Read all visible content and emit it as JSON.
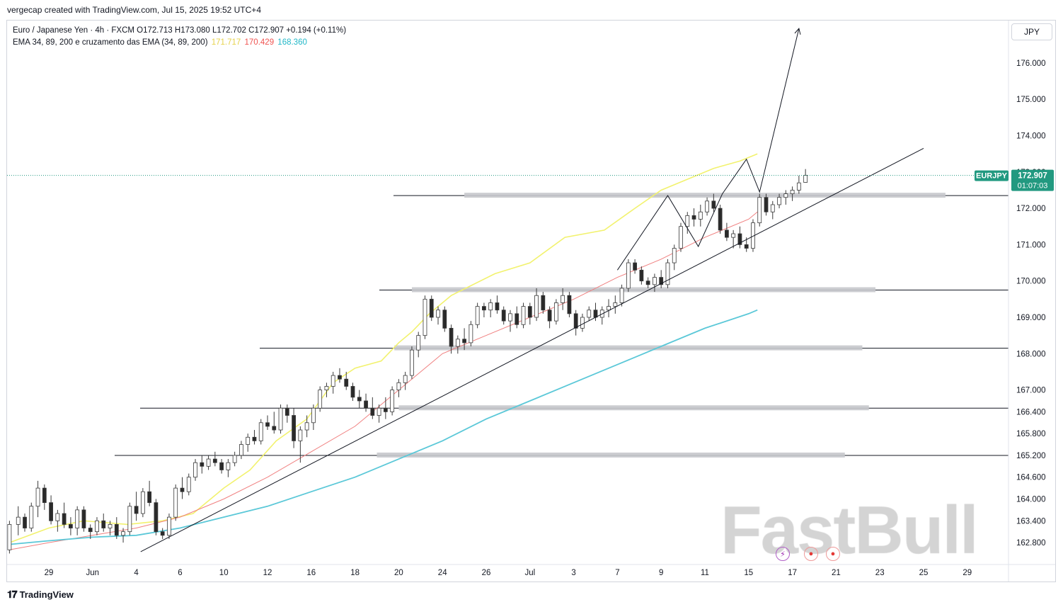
{
  "header": {
    "credit": "vergecap created with TradingView.com, Jul 15, 2025 19:52 UTC+4"
  },
  "legend": {
    "symbol_line": "Euro / Japanese Yen · 4h · FXCM",
    "open": "O172.713",
    "high": "H173.080",
    "low": "L172.702",
    "close": "C172.907",
    "change": "+0.194 (+0.11%)",
    "indicator_name": "EMA 34, 89, 200 e cruzamento das EMA (34, 89, 200)",
    "ema34_value": "171.717",
    "ema89_value": "170.429",
    "ema200_value": "168.360"
  },
  "price_axis": {
    "currency": "JPY"
  },
  "price_tag": {
    "symbol": "EURJPY",
    "price": "172.907",
    "countdown": "01:07:03"
  },
  "footer": {
    "brand": "TradingView"
  },
  "watermark": "FastBull",
  "colors": {
    "up": "#26a69a",
    "down": "#ef5350",
    "candle": "#3a3a3a",
    "ema34": "#f2f26e",
    "ema89": "#f08080",
    "ema200": "#5bc8d8",
    "tag_bg": "#229980",
    "zone": "#c7c8cc"
  },
  "events": [
    {
      "icon": "lightning-event-icon",
      "color": "#9c27b0"
    },
    {
      "icon": "economic-event-icon",
      "color": "#e53935"
    },
    {
      "icon": "economic-event-icon",
      "color": "#e53935"
    }
  ],
  "chart_data": {
    "type": "candlestick",
    "timeframe": "4h",
    "ylim": [
      162.5,
      177.0
    ],
    "y_ticks": [
      162.8,
      163.4,
      164.0,
      164.6,
      165.2,
      165.8,
      166.4,
      167.0,
      168.0,
      169.0,
      170.0,
      171.0,
      172.0,
      173.0,
      174.0,
      175.0,
      176.0
    ],
    "y_tick_labels": [
      "162.800",
      "163.400",
      "164.000",
      "164.600",
      "165.200",
      "165.800",
      "166.400",
      "167.000",
      "168.000",
      "169.000",
      "170.000",
      "171.000",
      "172.000",
      "173.000",
      "174.000",
      "175.000",
      "176.000"
    ],
    "x_tick_labels": [
      "29",
      "Jun",
      "4",
      "6",
      "10",
      "12",
      "16",
      "18",
      "20",
      "24",
      "26",
      "Jul",
      "3",
      "7",
      "9",
      "11",
      "15",
      "17",
      "21",
      "23",
      "25",
      "29"
    ],
    "x_tick_positions": [
      0,
      1,
      2,
      3,
      4,
      5,
      6,
      7,
      8,
      9,
      10,
      11,
      12,
      13,
      14,
      15,
      16,
      17,
      18,
      19,
      20,
      21
    ],
    "horizontal_levels": [
      172.35,
      169.75,
      168.15,
      166.5,
      165.2
    ],
    "support_zones": [
      {
        "level": 172.35,
        "from_tick": 9.5,
        "to_tick": 20.5
      },
      {
        "level": 169.75,
        "from_tick": 8.3,
        "to_tick": 18.9
      },
      {
        "level": 168.15,
        "from_tick": 7.9,
        "to_tick": 18.6
      },
      {
        "level": 166.5,
        "from_tick": 8.0,
        "to_tick": 18.75
      },
      {
        "level": 165.2,
        "from_tick": 7.5,
        "to_tick": 18.2
      }
    ],
    "trendline": {
      "from": {
        "x": 2.1,
        "y": 162.55
      },
      "to": {
        "x": 20.0,
        "y": 173.65
      }
    },
    "projection": [
      {
        "x": 13.0,
        "y": 170.3
      },
      {
        "x": 14.15,
        "y": 172.35
      },
      {
        "x": 14.85,
        "y": 170.95
      },
      {
        "x": 15.4,
        "y": 172.4
      },
      {
        "x": 15.95,
        "y": 173.35
      },
      {
        "x": 16.25,
        "y": 172.45
      },
      {
        "x": 17.15,
        "y": 176.95
      }
    ],
    "series": [
      {
        "name": "EMA 34",
        "x": [
          -0.9,
          0,
          0.8,
          1.8,
          2.6,
          3.3,
          4,
          4.6,
          5.2,
          5.9,
          6.5,
          7,
          7.6,
          8,
          8.3,
          8.7,
          9.2,
          10.2,
          11,
          11.8,
          12.7,
          13.4,
          14,
          14.6,
          15.2,
          15.8,
          16.2
        ],
        "y": [
          162.8,
          163.2,
          163.4,
          163.3,
          163.4,
          163.6,
          164.3,
          164.8,
          165.6,
          166.2,
          167.2,
          167.6,
          167.8,
          168.3,
          168.6,
          169.1,
          169.6,
          170.2,
          170.5,
          171.2,
          171.4,
          172.0,
          172.5,
          172.8,
          173.1,
          173.3,
          173.5
        ]
      },
      {
        "name": "EMA 89",
        "x": [
          -0.9,
          0,
          1,
          2,
          3,
          4,
          5,
          6,
          7,
          7.5,
          8,
          8.5,
          9,
          10,
          11,
          12,
          13,
          14,
          15,
          16,
          16.2
        ],
        "y": [
          162.6,
          162.8,
          163.0,
          163.2,
          163.5,
          164.0,
          164.6,
          165.3,
          166.0,
          166.5,
          167.0,
          167.5,
          168.0,
          168.5,
          169.0,
          169.5,
          170.1,
          170.6,
          171.2,
          171.7,
          171.9
        ]
      },
      {
        "name": "EMA 200",
        "x": [
          -0.9,
          0,
          1,
          2,
          3,
          4,
          5,
          6,
          7,
          8,
          9,
          10,
          11,
          12,
          13,
          14,
          15,
          16,
          16.2
        ],
        "y": [
          162.75,
          162.85,
          162.95,
          163.0,
          163.2,
          163.5,
          163.8,
          164.2,
          164.6,
          165.1,
          165.6,
          166.2,
          166.7,
          167.2,
          167.7,
          168.2,
          168.7,
          169.1,
          169.2
        ]
      }
    ],
    "candles": [
      [
        -0.9,
        162.6,
        163.4,
        162.5,
        163.3
      ],
      [
        -0.7,
        163.3,
        163.8,
        163.0,
        163.5
      ],
      [
        -0.55,
        163.5,
        163.6,
        163.1,
        163.2
      ],
      [
        -0.4,
        163.2,
        163.9,
        163.1,
        163.8
      ],
      [
        -0.25,
        163.8,
        164.5,
        163.5,
        164.3
      ],
      [
        -0.1,
        164.3,
        164.4,
        163.7,
        163.9
      ],
      [
        0.05,
        163.9,
        164.1,
        163.3,
        163.4
      ],
      [
        0.2,
        163.4,
        163.7,
        163.1,
        163.6
      ],
      [
        0.35,
        163.6,
        163.9,
        163.2,
        163.3
      ],
      [
        0.5,
        163.3,
        163.5,
        163.0,
        163.2
      ],
      [
        0.65,
        163.2,
        163.8,
        163.0,
        163.7
      ],
      [
        0.8,
        163.7,
        163.8,
        163.1,
        163.2
      ],
      [
        0.95,
        163.2,
        163.3,
        162.9,
        163.1
      ],
      [
        1.1,
        163.1,
        163.5,
        163.0,
        163.4
      ],
      [
        1.25,
        163.4,
        163.6,
        163.1,
        163.2
      ],
      [
        1.4,
        163.2,
        163.4,
        163.0,
        163.3
      ],
      [
        1.55,
        163.3,
        163.5,
        162.9,
        163.0
      ],
      [
        1.7,
        163.0,
        163.2,
        162.8,
        163.1
      ],
      [
        1.85,
        163.1,
        163.9,
        163.0,
        163.8
      ],
      [
        2.0,
        163.8,
        164.2,
        163.4,
        163.6
      ],
      [
        2.15,
        163.6,
        164.3,
        163.5,
        164.2
      ],
      [
        2.3,
        164.2,
        164.5,
        163.8,
        163.9
      ],
      [
        2.45,
        163.9,
        164.0,
        163.0,
        163.1
      ],
      [
        2.6,
        163.1,
        163.2,
        162.9,
        163.0
      ],
      [
        2.75,
        163.0,
        163.6,
        162.9,
        163.5
      ],
      [
        2.9,
        163.5,
        164.4,
        163.4,
        164.3
      ],
      [
        3.05,
        164.3,
        164.6,
        164.0,
        164.2
      ],
      [
        3.2,
        164.2,
        164.7,
        164.1,
        164.6
      ],
      [
        3.35,
        164.6,
        165.1,
        164.5,
        165.0
      ],
      [
        3.5,
        165.0,
        165.2,
        164.7,
        164.9
      ],
      [
        3.65,
        164.9,
        165.2,
        164.8,
        165.1
      ],
      [
        3.8,
        165.1,
        165.3,
        164.9,
        165.0
      ],
      [
        3.95,
        165.0,
        165.1,
        164.7,
        164.8
      ],
      [
        4.1,
        164.8,
        165.1,
        164.6,
        165.0
      ],
      [
        4.25,
        165.0,
        165.3,
        164.9,
        165.2
      ],
      [
        4.4,
        165.2,
        165.6,
        165.1,
        165.5
      ],
      [
        4.55,
        165.5,
        165.8,
        165.3,
        165.7
      ],
      [
        4.7,
        165.7,
        165.9,
        165.5,
        165.6
      ],
      [
        4.85,
        165.6,
        166.2,
        165.5,
        166.1
      ],
      [
        5.0,
        166.1,
        166.3,
        165.9,
        166.0
      ],
      [
        5.15,
        166.0,
        166.4,
        165.8,
        165.9
      ],
      [
        5.3,
        165.9,
        166.6,
        165.8,
        166.5
      ],
      [
        5.45,
        166.5,
        166.6,
        166.1,
        166.3
      ],
      [
        5.6,
        166.3,
        166.5,
        165.4,
        165.6
      ],
      [
        5.75,
        165.6,
        166.0,
        165.0,
        165.9
      ],
      [
        5.9,
        165.9,
        166.3,
        165.7,
        166.1
      ],
      [
        6.05,
        166.1,
        166.6,
        165.9,
        166.5
      ],
      [
        6.2,
        166.5,
        167.1,
        166.4,
        167.0
      ],
      [
        6.35,
        167.0,
        167.2,
        166.8,
        167.1
      ],
      [
        6.5,
        167.1,
        167.5,
        166.9,
        167.4
      ],
      [
        6.65,
        167.4,
        167.6,
        167.2,
        167.3
      ],
      [
        6.8,
        167.3,
        167.5,
        167.0,
        167.1
      ],
      [
        6.95,
        167.1,
        167.2,
        166.7,
        166.8
      ],
      [
        7.1,
        166.8,
        167.0,
        166.5,
        166.7
      ],
      [
        7.25,
        166.7,
        166.9,
        166.4,
        166.5
      ],
      [
        7.4,
        166.5,
        166.8,
        166.2,
        166.3
      ],
      [
        7.55,
        166.3,
        166.6,
        166.1,
        166.5
      ],
      [
        7.7,
        166.5,
        166.8,
        166.2,
        166.4
      ],
      [
        7.85,
        166.4,
        167.1,
        166.3,
        167.0
      ],
      [
        8.0,
        167.0,
        167.3,
        166.8,
        167.2
      ],
      [
        8.15,
        167.2,
        167.5,
        167.0,
        167.4
      ],
      [
        8.3,
        167.4,
        168.2,
        167.3,
        168.1
      ],
      [
        8.45,
        168.1,
        168.6,
        167.9,
        168.5
      ],
      [
        8.6,
        168.5,
        169.6,
        168.4,
        169.5
      ],
      [
        8.75,
        169.5,
        169.6,
        168.9,
        169.0
      ],
      [
        8.9,
        169.0,
        169.3,
        168.8,
        169.2
      ],
      [
        9.05,
        169.2,
        169.3,
        168.6,
        168.7
      ],
      [
        9.2,
        168.7,
        168.8,
        168.0,
        168.2
      ],
      [
        9.35,
        168.2,
        168.5,
        168.0,
        168.4
      ],
      [
        9.5,
        168.4,
        168.7,
        168.1,
        168.3
      ],
      [
        9.65,
        168.3,
        168.9,
        168.2,
        168.8
      ],
      [
        9.8,
        168.8,
        169.4,
        168.7,
        169.3
      ],
      [
        9.95,
        169.3,
        169.4,
        169.0,
        169.2
      ],
      [
        10.1,
        169.2,
        169.5,
        169.0,
        169.4
      ],
      [
        10.25,
        169.4,
        169.6,
        169.1,
        169.2
      ],
      [
        10.4,
        169.2,
        169.3,
        168.8,
        168.9
      ],
      [
        10.55,
        168.9,
        169.2,
        168.6,
        169.1
      ],
      [
        10.7,
        169.1,
        169.3,
        168.7,
        168.8
      ],
      [
        10.85,
        168.8,
        169.4,
        168.7,
        169.3
      ],
      [
        11.0,
        169.3,
        169.4,
        168.8,
        169.0
      ],
      [
        11.15,
        169.0,
        169.8,
        168.9,
        169.6
      ],
      [
        11.3,
        169.6,
        169.7,
        169.1,
        169.2
      ],
      [
        11.45,
        169.2,
        169.3,
        168.7,
        168.9
      ],
      [
        11.6,
        168.9,
        169.5,
        168.8,
        169.4
      ],
      [
        11.75,
        169.4,
        169.8,
        169.2,
        169.6
      ],
      [
        11.9,
        169.6,
        169.7,
        169.0,
        169.1
      ],
      [
        12.05,
        169.1,
        169.2,
        168.5,
        168.7
      ],
      [
        12.2,
        168.7,
        169.1,
        168.6,
        169.0
      ],
      [
        12.35,
        169.0,
        169.3,
        168.9,
        169.2
      ],
      [
        12.5,
        169.2,
        169.4,
        168.9,
        169.0
      ],
      [
        12.65,
        169.0,
        169.3,
        168.8,
        169.2
      ],
      [
        12.8,
        169.2,
        169.5,
        169.0,
        169.3
      ],
      [
        12.95,
        169.3,
        169.6,
        169.1,
        169.4
      ],
      [
        13.1,
        169.4,
        169.9,
        169.3,
        169.8
      ],
      [
        13.25,
        169.8,
        170.6,
        169.7,
        170.5
      ],
      [
        13.4,
        170.5,
        170.6,
        170.2,
        170.3
      ],
      [
        13.55,
        170.3,
        170.4,
        169.9,
        170.0
      ],
      [
        13.7,
        170.0,
        170.1,
        169.8,
        169.9
      ],
      [
        13.85,
        169.9,
        170.2,
        169.7,
        170.1
      ],
      [
        14.0,
        170.1,
        170.3,
        169.8,
        169.9
      ],
      [
        14.15,
        169.9,
        170.6,
        169.8,
        170.5
      ],
      [
        14.3,
        170.5,
        171.0,
        170.3,
        170.9
      ],
      [
        14.45,
        170.9,
        171.6,
        170.8,
        171.5
      ],
      [
        14.6,
        171.5,
        171.9,
        171.3,
        171.8
      ],
      [
        14.75,
        171.8,
        172.0,
        171.5,
        171.7
      ],
      [
        14.9,
        171.7,
        172.1,
        171.5,
        171.9
      ],
      [
        15.05,
        171.9,
        172.3,
        171.8,
        172.2
      ],
      [
        15.2,
        172.2,
        172.4,
        171.9,
        172.0
      ],
      [
        15.35,
        172.0,
        172.1,
        171.3,
        171.4
      ],
      [
        15.5,
        171.4,
        171.6,
        171.1,
        171.2
      ],
      [
        15.65,
        171.2,
        171.4,
        170.9,
        171.3
      ],
      [
        15.8,
        171.3,
        171.5,
        170.9,
        171.0
      ],
      [
        15.95,
        171.0,
        171.2,
        170.8,
        170.9
      ],
      [
        16.1,
        170.9,
        171.7,
        170.8,
        171.6
      ],
      [
        16.25,
        171.6,
        172.4,
        171.5,
        172.3
      ],
      [
        16.4,
        172.3,
        172.4,
        171.8,
        171.9
      ],
      [
        16.55,
        171.9,
        172.2,
        171.7,
        172.1
      ],
      [
        16.7,
        172.1,
        172.4,
        172.0,
        172.3
      ],
      [
        16.85,
        172.3,
        172.5,
        172.1,
        172.4
      ],
      [
        17.0,
        172.4,
        172.6,
        172.2,
        172.5
      ],
      [
        17.15,
        172.5,
        172.9,
        172.4,
        172.7
      ],
      [
        17.3,
        172.713,
        173.08,
        172.702,
        172.907
      ]
    ]
  }
}
